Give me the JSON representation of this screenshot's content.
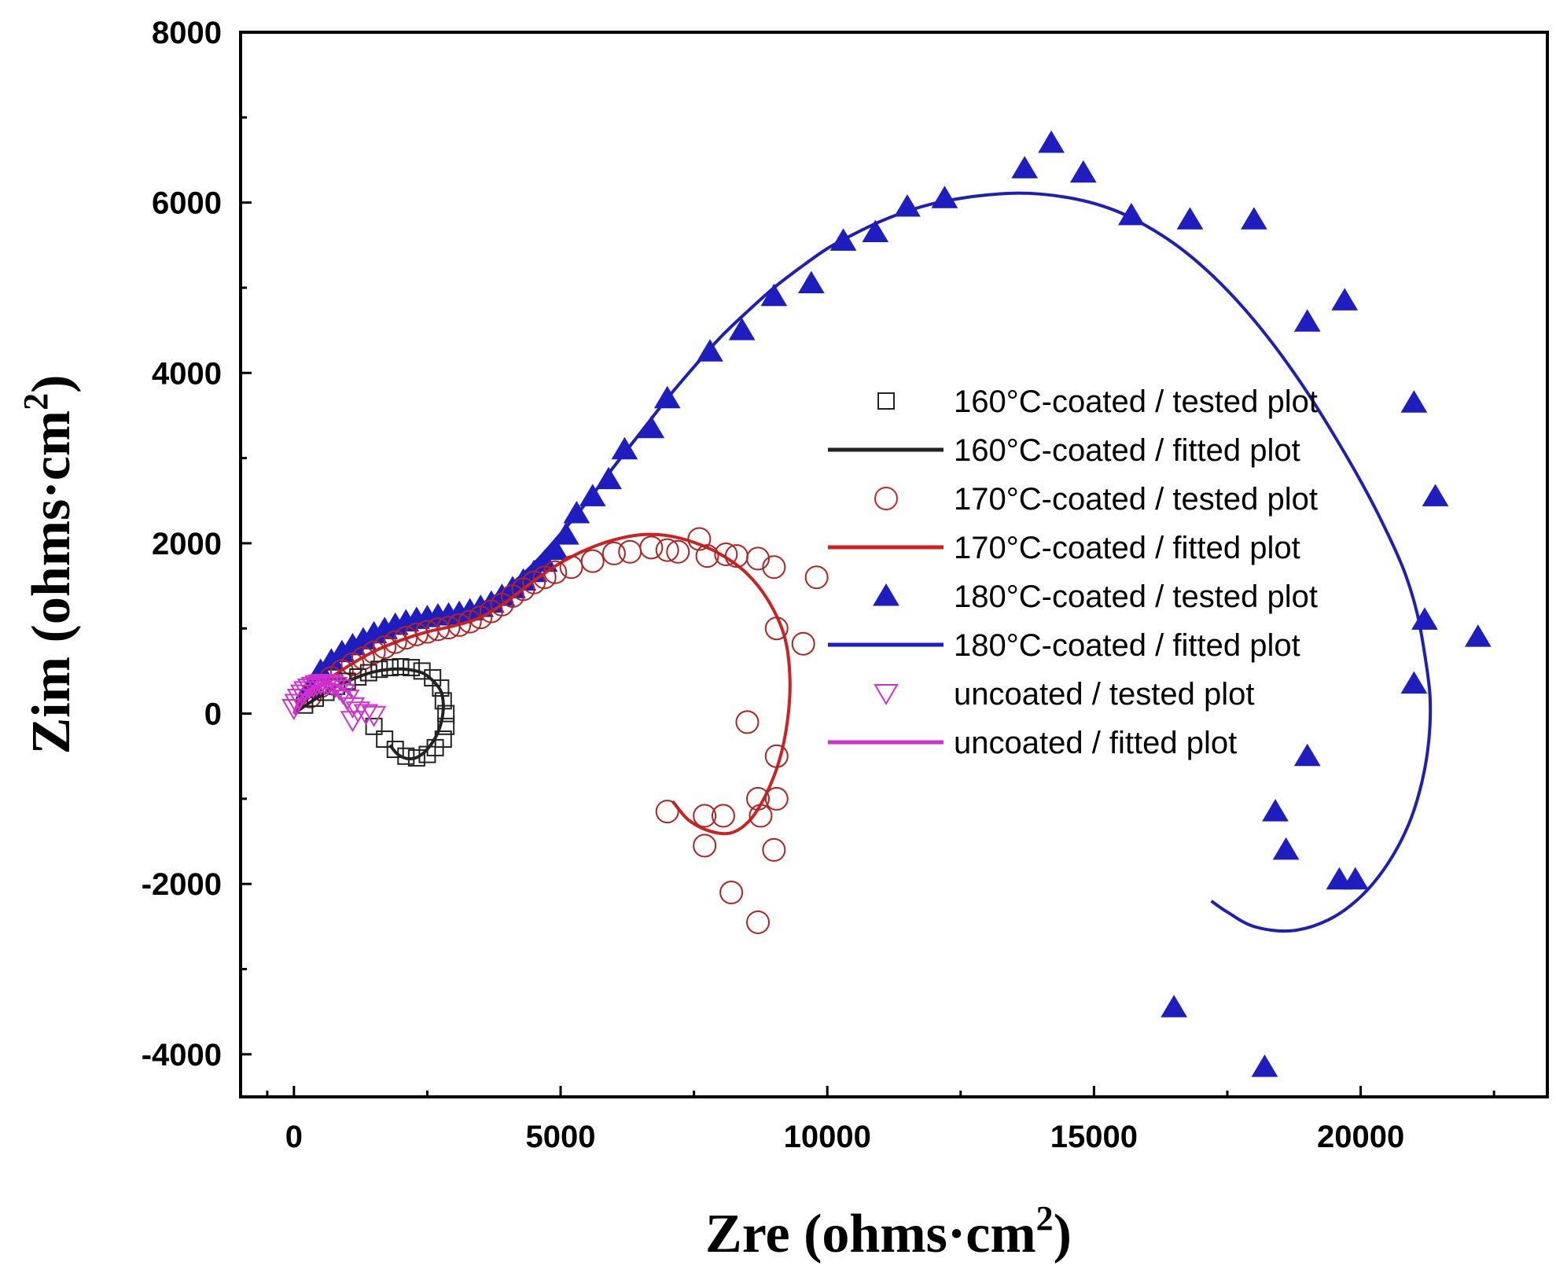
{
  "chart_data": {
    "type": "scatter",
    "title": "",
    "xlabel": "Zre (ohms·cm",
    "xlabel_sup": "2",
    "xlabel_close": ")",
    "ylabel": "Zim (ohms·cm",
    "ylabel_sup": "2",
    "ylabel_close": ")",
    "xlim": [
      -1000,
      23500
    ],
    "ylim": [
      -4500,
      8000
    ],
    "xticks": [
      0,
      5000,
      10000,
      15000,
      20000
    ],
    "yticks": [
      -4000,
      -2000,
      0,
      2000,
      4000,
      6000,
      8000
    ],
    "xtick_labels": [
      "0",
      "5000",
      "10000",
      "15000",
      "20000"
    ],
    "ytick_labels": [
      "-4000",
      "-2000",
      "0",
      "2000",
      "4000",
      "6000",
      "8000"
    ],
    "legend_position": "center-right",
    "legend": [
      {
        "label": "160°C-coated / tested plot",
        "series": "160",
        "kind": "marker"
      },
      {
        "label": "160°C-coated / fitted plot",
        "series": "160",
        "kind": "line"
      },
      {
        "label": "170°C-coated / tested plot",
        "series": "170",
        "kind": "marker"
      },
      {
        "label": "170°C-coated / fitted plot",
        "series": "170",
        "kind": "line"
      },
      {
        "label": "180°C-coated / tested plot",
        "series": "180",
        "kind": "marker"
      },
      {
        "label": "180°C-coated / fitted  plot",
        "series": "180",
        "kind": "line"
      },
      {
        "label": "uncoated / tested plot",
        "series": "unc",
        "kind": "marker"
      },
      {
        "label": "uncoated / fitted plot",
        "series": "unc",
        "kind": "line"
      }
    ],
    "series": [
      {
        "id": "160",
        "name": "160°C-coated",
        "color": "#222222",
        "marker": "square",
        "tested": [
          [
            200,
            100
          ],
          [
            400,
            180
          ],
          [
            600,
            250
          ],
          [
            800,
            320
          ],
          [
            1000,
            380
          ],
          [
            1200,
            430
          ],
          [
            1400,
            480
          ],
          [
            1600,
            520
          ],
          [
            1800,
            540
          ],
          [
            2000,
            550
          ],
          [
            2200,
            540
          ],
          [
            2400,
            500
          ],
          [
            2600,
            420
          ],
          [
            2750,
            300
          ],
          [
            2800,
            150
          ],
          [
            2850,
            0
          ],
          [
            2850,
            -150
          ],
          [
            2800,
            -300
          ],
          [
            2650,
            -400
          ],
          [
            2500,
            -480
          ],
          [
            2300,
            -520
          ],
          [
            2100,
            -500
          ],
          [
            1900,
            -420
          ],
          [
            1700,
            -300
          ],
          [
            1500,
            -150
          ]
        ],
        "fitted": [
          [
            0,
            0
          ],
          [
            300,
            130
          ],
          [
            600,
            250
          ],
          [
            900,
            350
          ],
          [
            1200,
            430
          ],
          [
            1500,
            490
          ],
          [
            1800,
            520
          ],
          [
            2100,
            520
          ],
          [
            2400,
            480
          ],
          [
            2600,
            390
          ],
          [
            2750,
            270
          ],
          [
            2800,
            120
          ],
          [
            2780,
            -50
          ],
          [
            2700,
            -220
          ],
          [
            2550,
            -380
          ],
          [
            2350,
            -500
          ],
          [
            2150,
            -530
          ],
          [
            1950,
            -480
          ],
          [
            1800,
            -370
          ]
        ]
      },
      {
        "id": "170",
        "name": "170°C-coated",
        "color": "#b22222",
        "marker": "circle",
        "tested": [
          [
            300,
            200
          ],
          [
            500,
            320
          ],
          [
            700,
            420
          ],
          [
            900,
            500
          ],
          [
            1100,
            580
          ],
          [
            1300,
            650
          ],
          [
            1500,
            720
          ],
          [
            1700,
            780
          ],
          [
            1900,
            840
          ],
          [
            2100,
            890
          ],
          [
            2300,
            930
          ],
          [
            2500,
            960
          ],
          [
            2700,
            990
          ],
          [
            2900,
            1010
          ],
          [
            3100,
            1040
          ],
          [
            3300,
            1080
          ],
          [
            3500,
            1130
          ],
          [
            3700,
            1200
          ],
          [
            3900,
            1280
          ],
          [
            4100,
            1380
          ],
          [
            4300,
            1460
          ],
          [
            4500,
            1540
          ],
          [
            4700,
            1600
          ],
          [
            4900,
            1660
          ],
          [
            5200,
            1720
          ],
          [
            5600,
            1790
          ],
          [
            6000,
            1880
          ],
          [
            6300,
            1900
          ],
          [
            6700,
            1950
          ],
          [
            7000,
            1920
          ],
          [
            7200,
            1900
          ],
          [
            7600,
            2050
          ],
          [
            7750,
            1850
          ],
          [
            8100,
            1870
          ],
          [
            8300,
            1850
          ],
          [
            8700,
            1820
          ],
          [
            9000,
            1720
          ],
          [
            9800,
            1600
          ],
          [
            9050,
            1000
          ],
          [
            9550,
            820
          ],
          [
            8500,
            -100
          ],
          [
            9050,
            -500
          ],
          [
            9050,
            -1000
          ],
          [
            8700,
            -1000
          ],
          [
            8750,
            -1200
          ],
          [
            8050,
            -1200
          ],
          [
            7700,
            -1200
          ],
          [
            7000,
            -1150
          ],
          [
            7700,
            -1550
          ],
          [
            9000,
            -1600
          ],
          [
            8200,
            -2100
          ],
          [
            8700,
            -2450
          ]
        ]
      },
      {
        "id": "170f",
        "name": "170°C-coated fit",
        "color": "#cc2222",
        "fitted": [
          [
            0,
            0
          ],
          [
            500,
            330
          ],
          [
            1000,
            550
          ],
          [
            1500,
            730
          ],
          [
            2000,
            860
          ],
          [
            2500,
            960
          ],
          [
            3000,
            1030
          ],
          [
            3500,
            1130
          ],
          [
            4000,
            1320
          ],
          [
            4500,
            1560
          ],
          [
            5000,
            1770
          ],
          [
            5500,
            1930
          ],
          [
            6000,
            2040
          ],
          [
            6500,
            2100
          ],
          [
            7000,
            2090
          ],
          [
            7500,
            2010
          ],
          [
            8000,
            1870
          ],
          [
            8500,
            1640
          ],
          [
            8900,
            1320
          ],
          [
            9200,
            900
          ],
          [
            9300,
            400
          ],
          [
            9250,
            -100
          ],
          [
            9100,
            -550
          ],
          [
            8850,
            -950
          ],
          [
            8550,
            -1250
          ],
          [
            8200,
            -1400
          ],
          [
            7800,
            -1380
          ],
          [
            7400,
            -1250
          ],
          [
            7100,
            -1030
          ]
        ]
      },
      {
        "id": "180",
        "name": "180°C-coated",
        "color": "#1d1dc0",
        "marker": "triangle",
        "tested": [
          [
            300,
            300
          ],
          [
            500,
            500
          ],
          [
            700,
            620
          ],
          [
            900,
            720
          ],
          [
            1100,
            800
          ],
          [
            1300,
            870
          ],
          [
            1500,
            940
          ],
          [
            1700,
            990
          ],
          [
            1900,
            1040
          ],
          [
            2100,
            1080
          ],
          [
            2300,
            1110
          ],
          [
            2500,
            1130
          ],
          [
            2700,
            1150
          ],
          [
            2900,
            1160
          ],
          [
            3100,
            1180
          ],
          [
            3300,
            1210
          ],
          [
            3500,
            1250
          ],
          [
            3700,
            1300
          ],
          [
            3900,
            1380
          ],
          [
            4100,
            1470
          ],
          [
            4300,
            1560
          ],
          [
            4500,
            1660
          ],
          [
            4700,
            1780
          ],
          [
            4900,
            1920
          ],
          [
            5100,
            2100
          ],
          [
            5300,
            2350
          ],
          [
            5600,
            2550
          ],
          [
            5900,
            2750
          ],
          [
            6200,
            3100
          ],
          [
            6700,
            3350
          ],
          [
            7000,
            3700
          ],
          [
            7800,
            4250
          ],
          [
            8400,
            4500
          ],
          [
            9000,
            4900
          ],
          [
            9700,
            5050
          ],
          [
            10300,
            5550
          ],
          [
            10900,
            5650
          ],
          [
            11500,
            5950
          ],
          [
            12200,
            6050
          ],
          [
            13700,
            6400
          ],
          [
            14200,
            6700
          ],
          [
            14800,
            6350
          ],
          [
            15700,
            5850
          ],
          [
            16800,
            5800
          ],
          [
            18000,
            5800
          ],
          [
            19000,
            4600
          ],
          [
            19700,
            4850
          ],
          [
            21000,
            3650
          ],
          [
            21400,
            2550
          ],
          [
            21200,
            1100
          ],
          [
            22200,
            900
          ],
          [
            21000,
            350
          ],
          [
            19000,
            -500
          ],
          [
            18400,
            -1150
          ],
          [
            18600,
            -1600
          ],
          [
            19600,
            -1950
          ],
          [
            19900,
            -1950
          ],
          [
            16500,
            -3450
          ],
          [
            18200,
            -4150
          ]
        ]
      },
      {
        "id": "180f",
        "name": "180°C-coated fit",
        "color": "#1f1fb5",
        "fitted": [
          [
            0,
            0
          ],
          [
            500,
            480
          ],
          [
            1000,
            760
          ],
          [
            1500,
            930
          ],
          [
            2000,
            1050
          ],
          [
            2500,
            1110
          ],
          [
            3000,
            1170
          ],
          [
            3500,
            1280
          ],
          [
            4000,
            1480
          ],
          [
            4500,
            1760
          ],
          [
            5000,
            2110
          ],
          [
            5500,
            2490
          ],
          [
            6000,
            2900
          ],
          [
            6500,
            3300
          ],
          [
            7000,
            3700
          ],
          [
            7500,
            4070
          ],
          [
            8000,
            4420
          ],
          [
            8500,
            4720
          ],
          [
            9000,
            5000
          ],
          [
            9500,
            5240
          ],
          [
            10000,
            5460
          ],
          [
            10500,
            5630
          ],
          [
            11000,
            5780
          ],
          [
            11500,
            5900
          ],
          [
            12000,
            5990
          ],
          [
            12500,
            6050
          ],
          [
            13000,
            6090
          ],
          [
            13500,
            6110
          ],
          [
            14000,
            6100
          ],
          [
            14500,
            6060
          ],
          [
            15000,
            5990
          ],
          [
            15500,
            5880
          ],
          [
            16000,
            5720
          ],
          [
            16500,
            5520
          ],
          [
            17000,
            5270
          ],
          [
            17500,
            4970
          ],
          [
            18000,
            4620
          ],
          [
            18500,
            4220
          ],
          [
            19000,
            3770
          ],
          [
            19500,
            3270
          ],
          [
            20000,
            2730
          ],
          [
            20400,
            2250
          ],
          [
            20800,
            1700
          ],
          [
            21050,
            1200
          ],
          [
            21200,
            700
          ],
          [
            21300,
            200
          ],
          [
            21280,
            -300
          ],
          [
            21150,
            -800
          ],
          [
            20900,
            -1300
          ],
          [
            20500,
            -1770
          ],
          [
            20000,
            -2150
          ],
          [
            19400,
            -2420
          ],
          [
            18700,
            -2550
          ],
          [
            18000,
            -2500
          ],
          [
            17500,
            -2330
          ],
          [
            17200,
            -2200
          ]
        ]
      },
      {
        "id": "unc",
        "name": "uncoated",
        "color": "#d22fd2",
        "marker": "triangle-down",
        "tested": [
          [
            0,
            60
          ],
          [
            50,
            120
          ],
          [
            100,
            180
          ],
          [
            160,
            230
          ],
          [
            220,
            270
          ],
          [
            290,
            300
          ],
          [
            360,
            320
          ],
          [
            430,
            340
          ],
          [
            500,
            350
          ],
          [
            570,
            355
          ],
          [
            640,
            350
          ],
          [
            710,
            340
          ],
          [
            780,
            320
          ],
          [
            850,
            290
          ],
          [
            920,
            240
          ],
          [
            1000,
            170
          ],
          [
            1100,
            80
          ],
          [
            1200,
            30
          ],
          [
            1350,
            0
          ],
          [
            1500,
            -20
          ],
          [
            1100,
            -80
          ]
        ],
        "fitted": [
          [
            0,
            0
          ],
          [
            100,
            150
          ],
          [
            250,
            260
          ],
          [
            400,
            320
          ],
          [
            550,
            350
          ],
          [
            700,
            350
          ],
          [
            850,
            320
          ],
          [
            1000,
            260
          ],
          [
            1100,
            190
          ]
        ]
      }
    ]
  }
}
